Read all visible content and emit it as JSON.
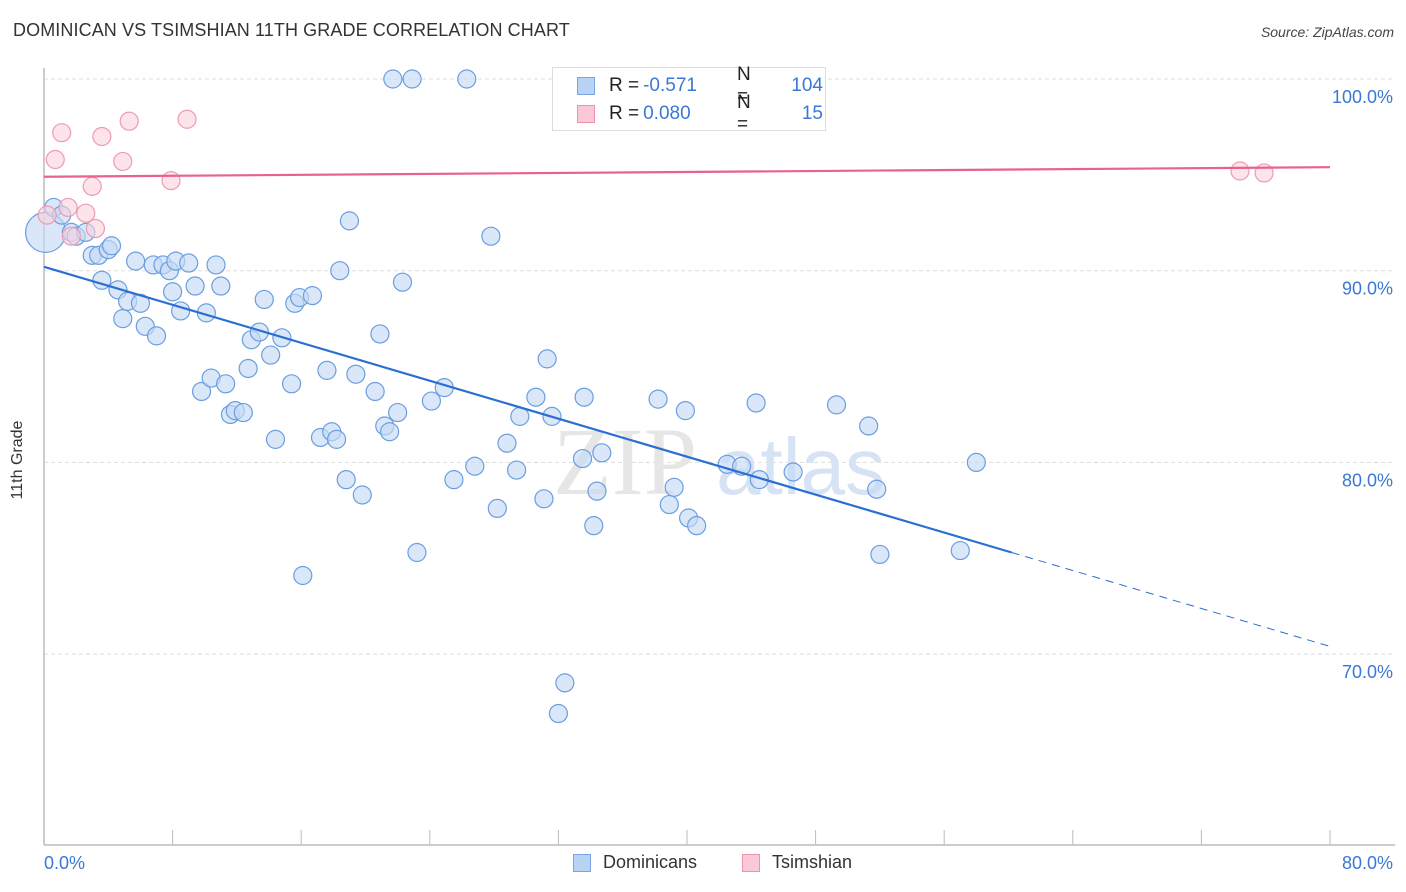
{
  "header": {
    "title": "DOMINICAN VS TSIMSHIAN 11TH GRADE CORRELATION CHART",
    "source": "Source: ZipAtlas.com"
  },
  "legend": {
    "rows": [
      {
        "series": "Dominicans",
        "r_label": "R =",
        "r_value": "-0.571",
        "n_label": "N =",
        "n_value": "104",
        "color": "#a9c8f0"
      },
      {
        "series": "Tsimshian",
        "r_label": "R =",
        "r_value": "0.080",
        "n_label": "N =",
        "n_value": "15",
        "color": "#f7b8cb"
      }
    ]
  },
  "bottom_legend": [
    {
      "label": "Dominicans",
      "fill": "#b9d3f4",
      "stroke": "#7aa6e0"
    },
    {
      "label": "Tsimshian",
      "fill": "#fbc8d6",
      "stroke": "#ee93ae"
    }
  ],
  "watermark": {
    "part1": "ZIP",
    "part2": "atlas"
  },
  "colors": {
    "dominicans_fill": "#c5daf5",
    "dominicans_stroke": "#6b9ee0",
    "dominicans_line": "#2a6fd1",
    "tsimshian_fill": "#fbd0dc",
    "tsimshian_stroke": "#ec9bb4",
    "tsimshian_line": "#e8628c",
    "tick_label": "#3a78d6",
    "grid": "#dddddd"
  },
  "chart_data": {
    "type": "scatter",
    "title": "DOMINICAN VS TSIMSHIAN 11TH GRADE CORRELATION CHART",
    "xlabel": "",
    "ylabel": "11th Grade",
    "xlim": [
      0,
      80
    ],
    "ylim": [
      60,
      101.5
    ],
    "x_tick_labels": [
      {
        "value": 0,
        "label": "0.0%"
      },
      {
        "value": 80,
        "label": "80.0%"
      }
    ],
    "x_minor_ticks": [
      0,
      8,
      16,
      24,
      32,
      40,
      48,
      56,
      64,
      72,
      80
    ],
    "y_ticks": [
      {
        "value": 100,
        "label": "100.0%"
      },
      {
        "value": 90,
        "label": "90.0%"
      },
      {
        "value": 80,
        "label": "80.0%"
      },
      {
        "value": 70,
        "label": "70.0%"
      }
    ],
    "grid": true,
    "legend_position": "top-center",
    "series": [
      {
        "name": "Dominicans",
        "r": -0.571,
        "n": 104,
        "trend": {
          "x_start": 0,
          "y_start": 90.2,
          "x_solid_end": 60.2,
          "y_solid_end": 75.3,
          "x_dash_end": 80,
          "y_dash_end": 70.4
        },
        "points": [
          [
            0.1,
            92.0,
            3
          ],
          [
            0.6,
            93.3,
            1
          ],
          [
            1.1,
            92.9,
            1
          ],
          [
            1.7,
            92.0,
            1
          ],
          [
            2.0,
            91.8,
            1
          ],
          [
            2.6,
            92.0,
            1
          ],
          [
            3.0,
            90.8,
            1
          ],
          [
            3.4,
            90.8,
            1
          ],
          [
            3.6,
            89.5,
            1
          ],
          [
            4.0,
            91.1,
            1
          ],
          [
            4.2,
            91.3,
            1
          ],
          [
            4.6,
            89.0,
            1
          ],
          [
            4.9,
            87.5,
            1
          ],
          [
            5.2,
            88.4,
            1
          ],
          [
            5.7,
            90.5,
            1
          ],
          [
            6.0,
            88.3,
            1
          ],
          [
            6.3,
            87.1,
            1
          ],
          [
            6.8,
            90.3,
            1
          ],
          [
            7.0,
            86.6,
            1
          ],
          [
            7.4,
            90.3,
            1
          ],
          [
            7.8,
            90.0,
            1
          ],
          [
            8.0,
            88.9,
            1
          ],
          [
            8.2,
            90.5,
            1
          ],
          [
            8.5,
            87.9,
            1
          ],
          [
            9.0,
            90.4,
            1
          ],
          [
            9.4,
            89.2,
            1
          ],
          [
            9.8,
            83.7,
            1
          ],
          [
            10.1,
            87.8,
            1
          ],
          [
            10.4,
            84.4,
            1
          ],
          [
            10.7,
            90.3,
            1
          ],
          [
            11.0,
            89.2,
            1
          ],
          [
            11.3,
            84.1,
            1
          ],
          [
            11.6,
            82.5,
            1
          ],
          [
            11.9,
            82.7,
            1
          ],
          [
            12.4,
            82.6,
            1
          ],
          [
            12.7,
            84.9,
            1
          ],
          [
            12.9,
            86.4,
            1
          ],
          [
            13.4,
            86.8,
            1
          ],
          [
            13.7,
            88.5,
            1
          ],
          [
            14.1,
            85.6,
            1
          ],
          [
            14.4,
            81.2,
            1
          ],
          [
            14.8,
            86.5,
            1
          ],
          [
            15.4,
            84.1,
            1
          ],
          [
            15.6,
            88.3,
            1
          ],
          [
            15.9,
            88.6,
            1
          ],
          [
            16.1,
            74.1,
            1
          ],
          [
            16.7,
            88.7,
            1
          ],
          [
            17.2,
            81.3,
            1
          ],
          [
            17.6,
            84.8,
            1
          ],
          [
            17.9,
            81.6,
            1
          ],
          [
            18.2,
            81.2,
            1
          ],
          [
            18.4,
            90.0,
            1
          ],
          [
            18.8,
            79.1,
            1
          ],
          [
            19.0,
            92.6,
            1
          ],
          [
            19.4,
            84.6,
            1
          ],
          [
            19.8,
            78.3,
            1
          ],
          [
            20.6,
            83.7,
            1
          ],
          [
            20.9,
            86.7,
            1
          ],
          [
            21.2,
            81.9,
            1
          ],
          [
            21.5,
            81.6,
            1
          ],
          [
            21.7,
            100.0,
            1
          ],
          [
            22.0,
            82.6,
            1
          ],
          [
            22.3,
            89.4,
            1
          ],
          [
            22.9,
            100.0,
            1
          ],
          [
            23.2,
            75.3,
            1
          ],
          [
            24.1,
            83.2,
            1
          ],
          [
            24.9,
            83.9,
            1
          ],
          [
            25.5,
            79.1,
            1
          ],
          [
            26.3,
            100.0,
            1
          ],
          [
            26.8,
            79.8,
            1
          ],
          [
            27.8,
            91.8,
            1
          ],
          [
            28.2,
            77.6,
            1
          ],
          [
            29.4,
            79.6,
            1
          ],
          [
            29.6,
            82.4,
            1
          ],
          [
            30.6,
            83.4,
            1
          ],
          [
            31.1,
            78.1,
            1
          ],
          [
            31.3,
            85.4,
            1
          ],
          [
            31.6,
            82.4,
            1
          ],
          [
            32.0,
            66.9,
            1
          ],
          [
            32.4,
            68.5,
            1
          ],
          [
            33.5,
            80.2,
            1
          ],
          [
            33.6,
            83.4,
            1
          ],
          [
            34.2,
            76.7,
            1
          ],
          [
            34.4,
            78.5,
            1
          ],
          [
            34.7,
            80.5,
            1
          ],
          [
            38.2,
            83.3,
            1
          ],
          [
            38.9,
            77.8,
            1
          ],
          [
            39.2,
            78.7,
            1
          ],
          [
            39.9,
            82.7,
            1
          ],
          [
            40.1,
            77.1,
            1
          ],
          [
            40.6,
            76.7,
            1
          ],
          [
            42.5,
            79.9,
            1
          ],
          [
            43.4,
            79.8,
            1
          ],
          [
            43.7,
            100.0,
            1
          ],
          [
            44.3,
            83.1,
            1
          ],
          [
            44.5,
            79.1,
            1
          ],
          [
            46.6,
            79.5,
            1
          ],
          [
            49.3,
            83.0,
            1
          ],
          [
            51.3,
            81.9,
            1
          ],
          [
            51.8,
            78.6,
            1
          ],
          [
            52.0,
            75.2,
            1
          ],
          [
            57.0,
            75.4,
            1
          ],
          [
            58.0,
            80.0,
            1
          ],
          [
            28.8,
            81.0,
            1
          ]
        ]
      },
      {
        "name": "Tsimshian",
        "r": 0.08,
        "n": 15,
        "trend": {
          "x_start": 0,
          "y_start": 94.9,
          "x_end": 80,
          "y_end": 95.4
        },
        "points": [
          [
            0.2,
            92.9,
            1
          ],
          [
            0.7,
            95.8,
            1
          ],
          [
            1.1,
            97.2,
            1
          ],
          [
            1.5,
            93.3,
            1
          ],
          [
            1.7,
            91.8,
            1
          ],
          [
            2.6,
            93.0,
            1
          ],
          [
            3.0,
            94.4,
            1
          ],
          [
            3.2,
            92.2,
            1
          ],
          [
            3.6,
            97.0,
            1
          ],
          [
            4.9,
            95.7,
            1
          ],
          [
            5.3,
            97.8,
            1
          ],
          [
            7.9,
            94.7,
            1
          ],
          [
            8.9,
            97.9,
            1
          ],
          [
            74.4,
            95.2,
            1
          ],
          [
            75.9,
            95.1,
            1
          ]
        ]
      }
    ]
  }
}
